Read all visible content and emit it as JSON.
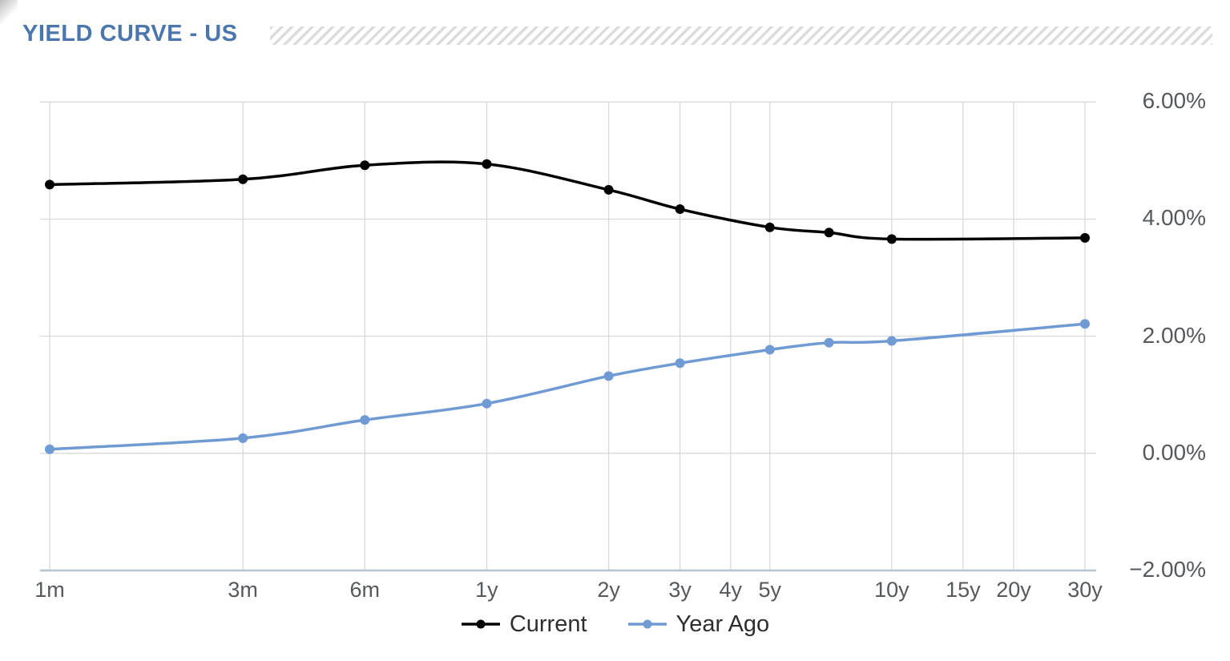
{
  "header": {
    "title": "YIELD CURVE - US"
  },
  "colors": {
    "title": "#4a76ad",
    "grid": "#d9d9d9",
    "axis_line": "#b6c2cd",
    "tick_text": "#55585c",
    "legend_text": "#2e2e2e",
    "hatch": "#dcdcdc"
  },
  "chart_data": {
    "type": "line",
    "title": "YIELD CURVE - US",
    "x_scale": "log",
    "xlabel": "",
    "ylabel": "",
    "x_tick_labels": [
      "1m",
      "3m",
      "6m",
      "1y",
      "2y",
      "3y",
      "4y",
      "5y",
      "10y",
      "15y",
      "20y",
      "30y"
    ],
    "x_tick_months": [
      1,
      3,
      6,
      12,
      24,
      36,
      48,
      60,
      120,
      180,
      240,
      360
    ],
    "y_tick_labels": [
      "6.00%",
      "4.00%",
      "2.00%",
      "0.00%",
      "−2.00%"
    ],
    "y_tick_values": [
      6,
      4,
      2,
      0,
      -2
    ],
    "ylim": [
      -2,
      6
    ],
    "grid": true,
    "legend_position": "bottom",
    "point_labels": [
      "1m",
      "3m",
      "6m",
      "1y",
      "2y",
      "3y",
      "5y",
      "7y",
      "10y",
      "30y"
    ],
    "point_months": [
      1,
      3,
      6,
      12,
      24,
      36,
      60,
      84,
      120,
      360
    ],
    "series": [
      {
        "name": "Current",
        "color": "#000000",
        "values": [
          4.59,
          4.68,
          4.92,
          4.94,
          4.5,
          4.17,
          3.86,
          3.77,
          3.66,
          3.68
        ]
      },
      {
        "name": "Year Ago",
        "color": "#6f9ad3",
        "values": [
          0.07,
          0.26,
          0.57,
          0.85,
          1.32,
          1.54,
          1.77,
          1.89,
          1.92,
          2.21
        ]
      }
    ]
  }
}
